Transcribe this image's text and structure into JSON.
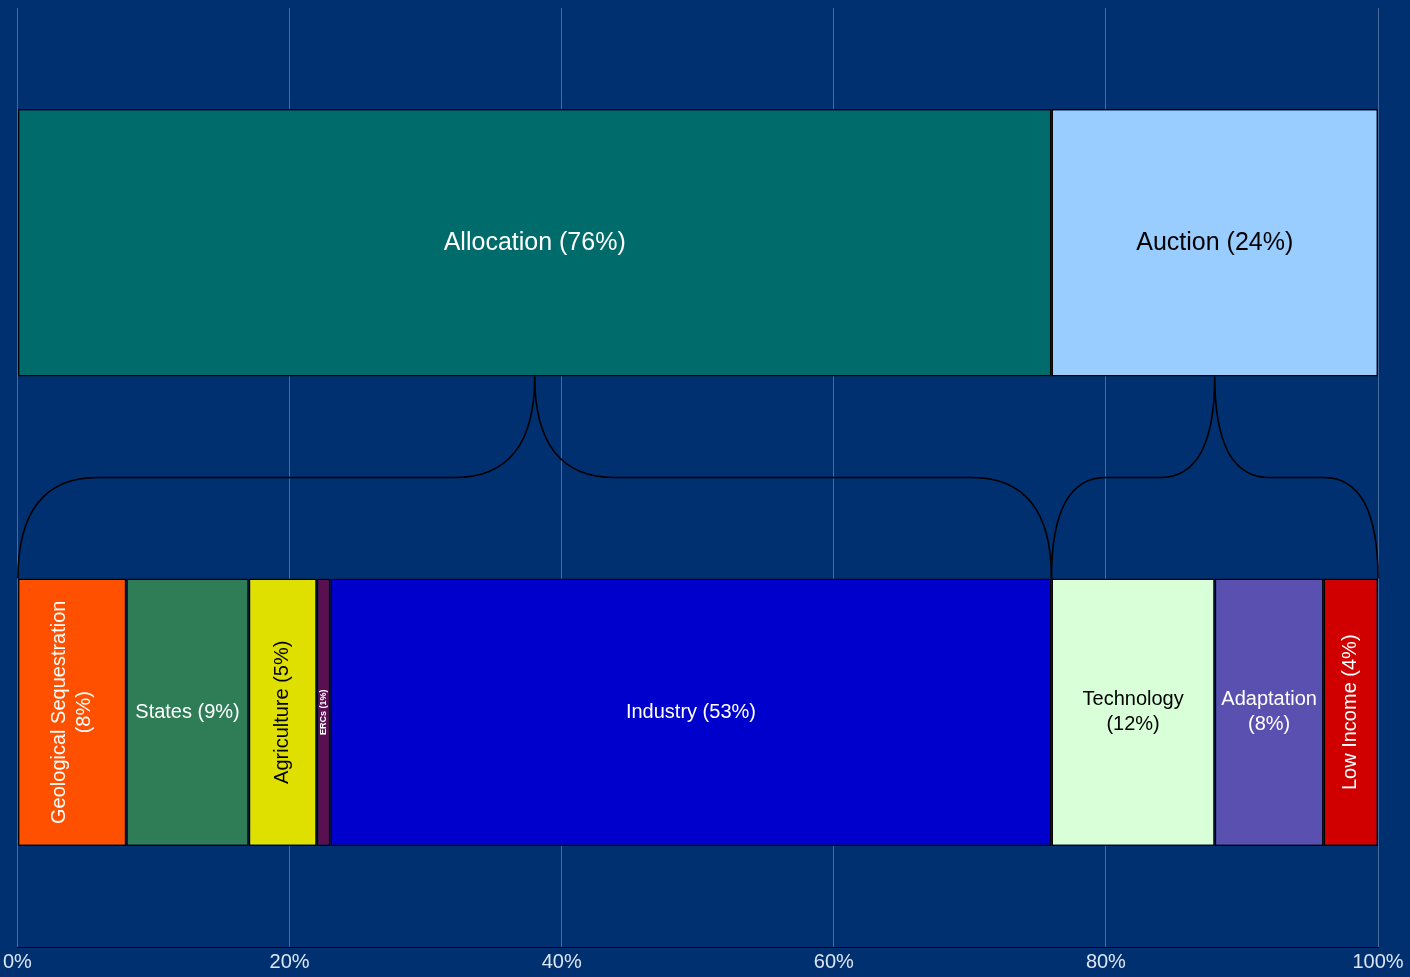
{
  "chart_data": {
    "type": "bar",
    "orientation": "horizontal",
    "stacked": true,
    "categories": [
      null,
      null
    ],
    "xlim": [
      0,
      100
    ],
    "xticks": [
      {
        "value": 0,
        "label": "0%"
      },
      {
        "value": 20,
        "label": "20%"
      },
      {
        "value": 40,
        "label": "40%"
      },
      {
        "value": 60,
        "label": "60%"
      },
      {
        "value": 80,
        "label": "80%"
      },
      {
        "value": 100,
        "label": "100%"
      }
    ],
    "grid": "x",
    "tick_labels": "x",
    "legend": false,
    "series": [
      {
        "name": "Allocation (76%)",
        "color": "#006b6b",
        "values": [
          76,
          null
        ]
      },
      {
        "name": "Auction (24%)",
        "color": "#99ccff",
        "values": [
          24,
          null
        ]
      },
      {
        "name": "Geological Sequestration (8%)",
        "color": "#ff5000",
        "values": [
          null,
          8
        ]
      },
      {
        "name": "States (9%)",
        "color": "#2e7d57",
        "values": [
          null,
          9
        ]
      },
      {
        "name": "Agriculture (5%)",
        "color": "#e0e000",
        "values": [
          null,
          5
        ]
      },
      {
        "name": "ERCs (1%)",
        "color": "#5a1050",
        "values": [
          null,
          1
        ]
      },
      {
        "name": "Industry (53%)",
        "color": "#0000cc",
        "values": [
          null,
          53
        ]
      },
      {
        "name": "Technology (12%)",
        "color": "#d9ffd9",
        "values": [
          null,
          12
        ]
      },
      {
        "name": "Adaptation (8%)",
        "color": "#5a50b0",
        "values": [
          null,
          8
        ]
      },
      {
        "name": "Low Income (4%)",
        "color": "#d00000",
        "values": [
          null,
          4
        ]
      }
    ]
  }
}
